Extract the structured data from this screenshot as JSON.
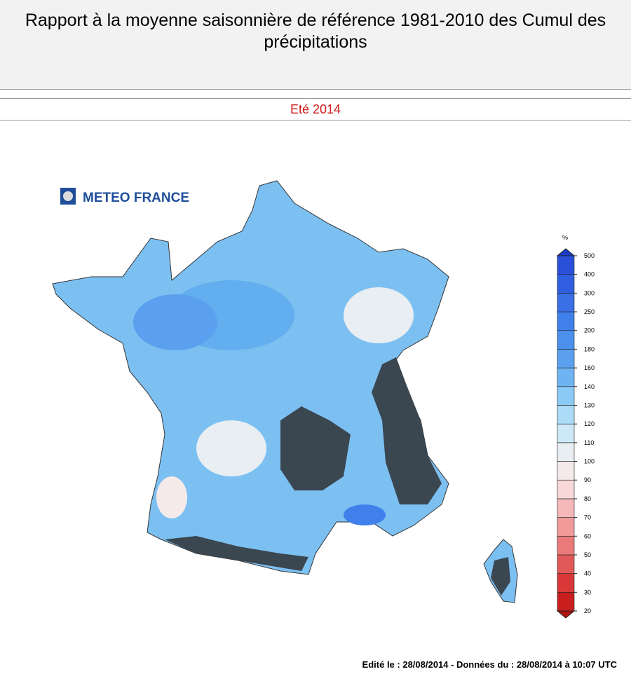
{
  "header": {
    "title": "Rapport à la moyenne saisonnière de référence 1981-2010 des Cumul des précipitations",
    "subtitle": "Eté 2014"
  },
  "logo": "METEO FRANCE",
  "legend": {
    "unit": "%",
    "ticks": [
      20,
      30,
      40,
      50,
      60,
      70,
      80,
      90,
      100,
      110,
      120,
      130,
      140,
      160,
      180,
      200,
      250,
      300,
      400,
      500
    ],
    "colors": [
      "#c81e1e",
      "#d83838",
      "#e25858",
      "#ea7a7a",
      "#f09a9a",
      "#f4b8b8",
      "#f8d8d8",
      "#f4eaea",
      "#e8eef2",
      "#cde9f8",
      "#aadcf8",
      "#8ccaf6",
      "#6eb4f2",
      "#5aa0ee",
      "#4a90ec",
      "#3f80ea",
      "#3a6fe6",
      "#2f5fe0",
      "#2a4fd8"
    ],
    "under_color": "#b01010",
    "over_color": "#1a3cc8"
  },
  "footer": "Edité le : 28/08/2014 - Données du : 28/08/2014 à 10:07 UTC"
}
